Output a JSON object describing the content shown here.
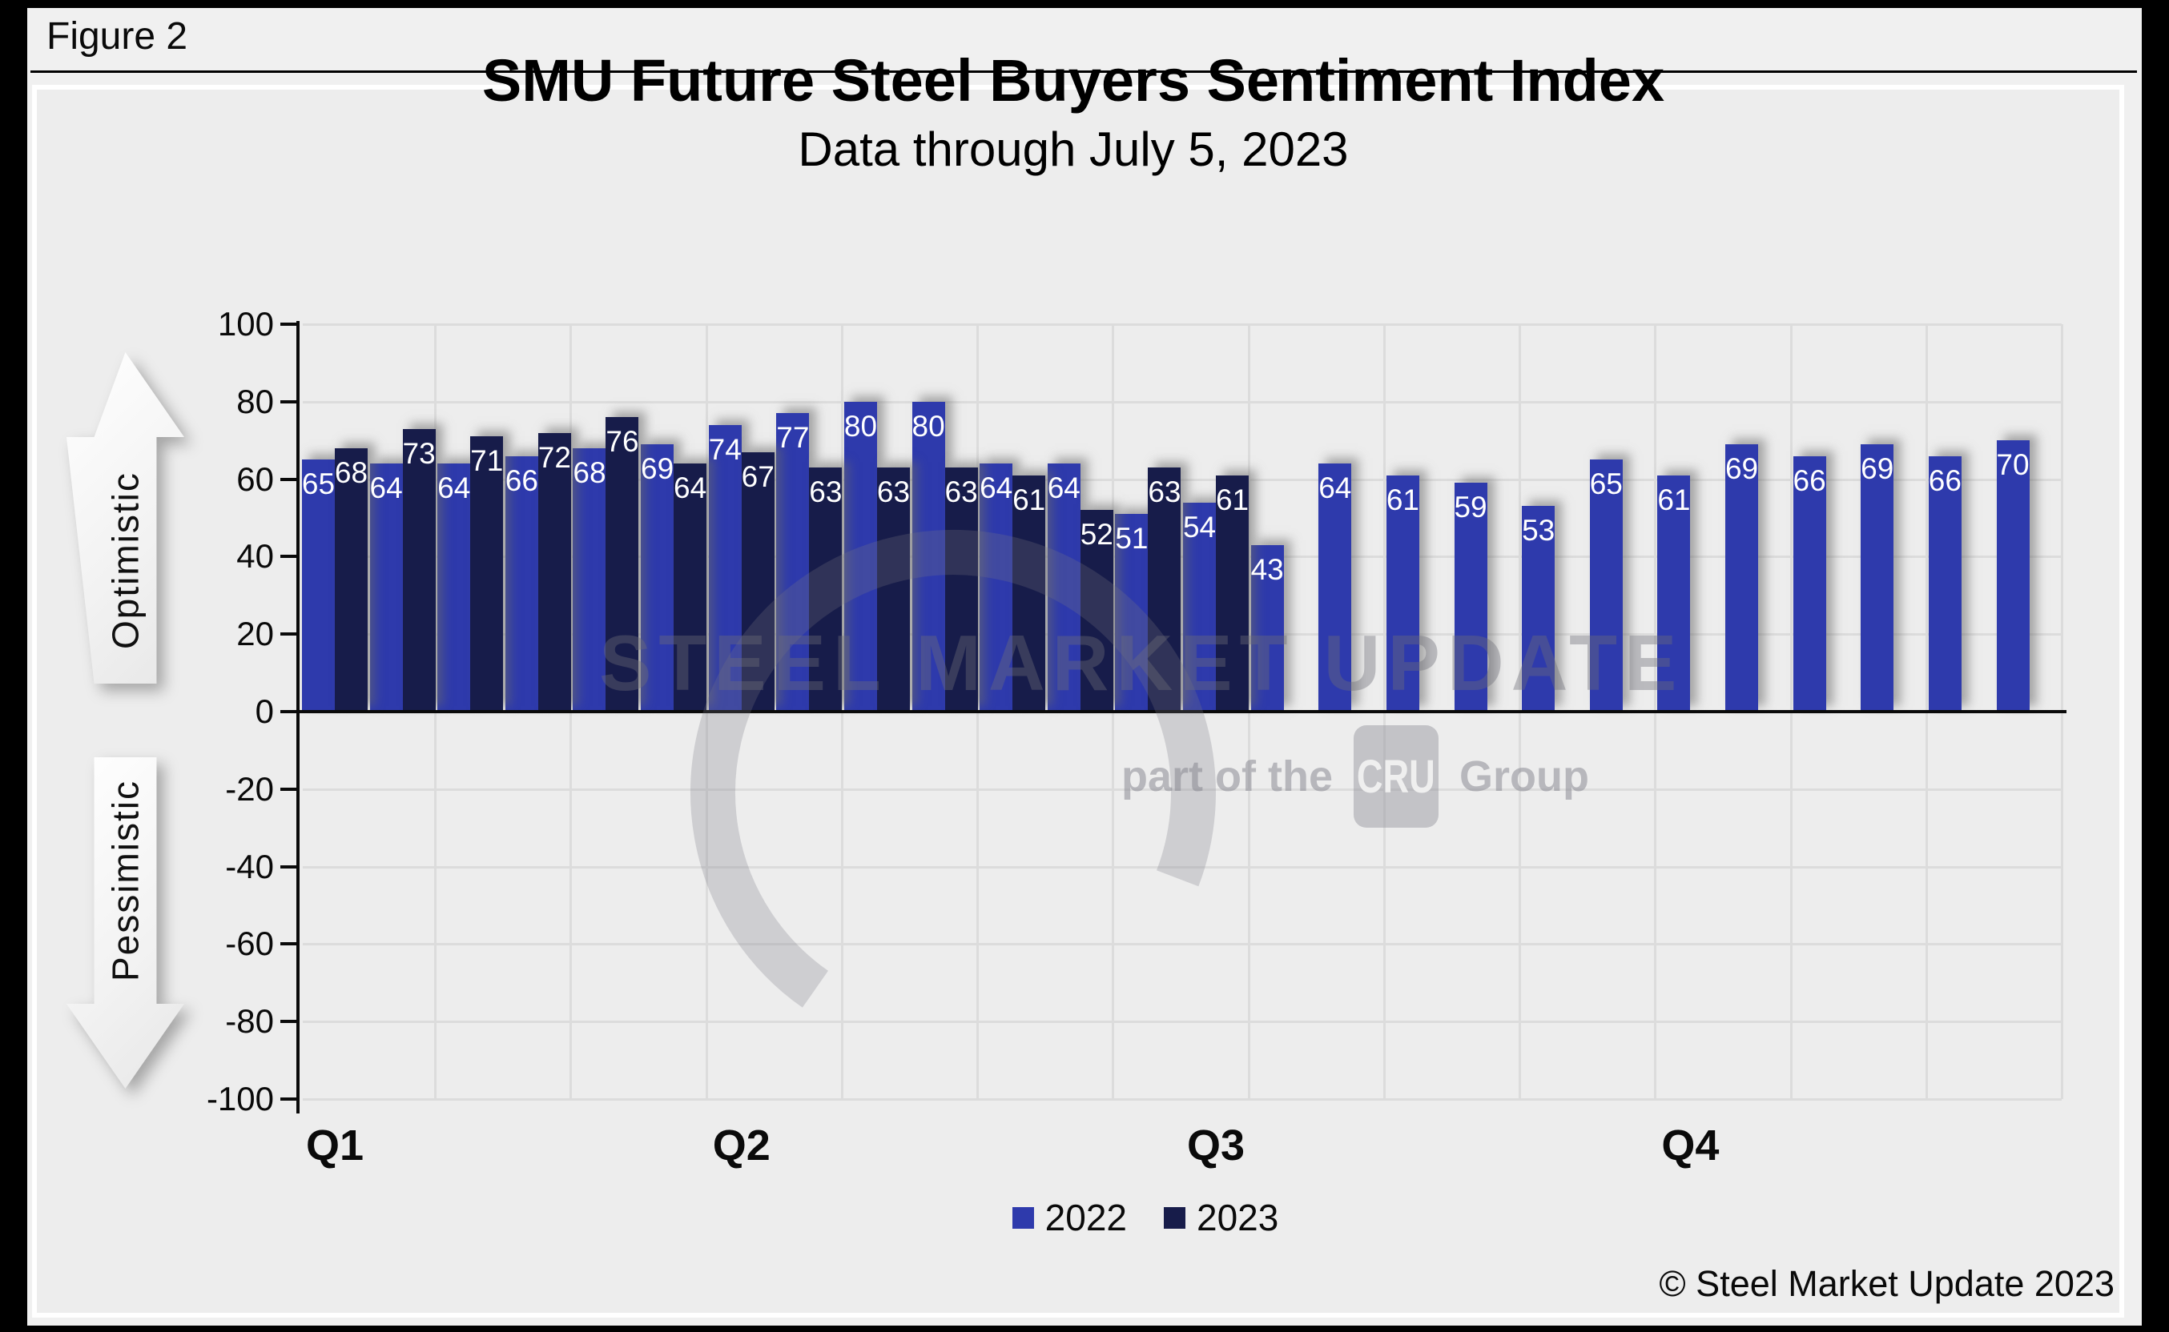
{
  "figure_label": "Figure 2",
  "header": {
    "title": "SMU Future Steel Buyers Sentiment Index",
    "subtitle": "Data through July 5, 2023"
  },
  "watermark": {
    "brand": "STEEL MARKET UPDATE",
    "tagline_prefix": "part of the",
    "tagline_box": "CRU",
    "tagline_suffix": "Group"
  },
  "footer": {
    "copyright": "© Steel Market Update 2023"
  },
  "chart_data": {
    "type": "bar",
    "title": "SMU Future Steel Buyers Sentiment Index",
    "subtitle": "Data through July 5, 2023",
    "ylim": [
      -100,
      100
    ],
    "yticks": [
      100,
      80,
      60,
      40,
      20,
      0,
      -20,
      -40,
      -60,
      -80,
      -100
    ],
    "grid": true,
    "legend_position": "bottom",
    "n_periods": 26,
    "x_gridline_every": 2,
    "axis_annotations": {
      "positive": "Optimistic",
      "negative": "Pessimistic"
    },
    "quarter_labels": [
      {
        "label": "Q1",
        "period_index": 0
      },
      {
        "label": "Q2",
        "period_index": 6
      },
      {
        "label": "Q3",
        "period_index": 13
      },
      {
        "label": "Q4",
        "period_index": 20
      }
    ],
    "series": [
      {
        "name": "2022",
        "color": "#2e3aac",
        "values": [
          65,
          64,
          64,
          66,
          68,
          69,
          74,
          77,
          80,
          80,
          64,
          64,
          51,
          54,
          43,
          64,
          61,
          59,
          53,
          65,
          61,
          69,
          66,
          69,
          66,
          70
        ]
      },
      {
        "name": "2023",
        "color": "#171c4a",
        "values": [
          68,
          73,
          71,
          72,
          76,
          64,
          67,
          63,
          63,
          63,
          61,
          52,
          63,
          61,
          null,
          null,
          null,
          null,
          null,
          null,
          null,
          null,
          null,
          null,
          null,
          null
        ]
      }
    ]
  }
}
